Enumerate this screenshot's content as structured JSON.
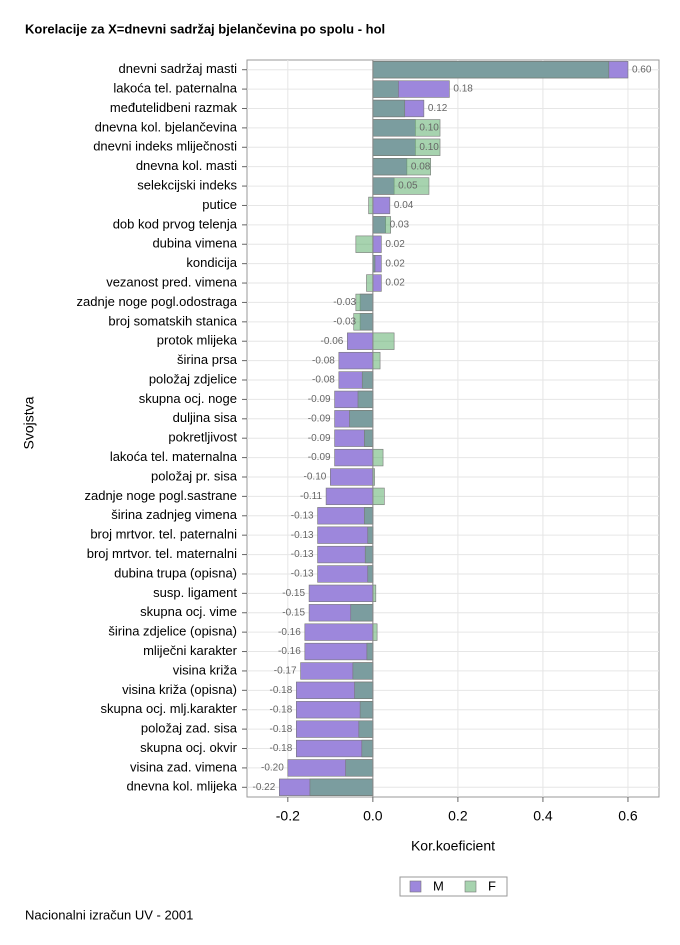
{
  "chart_data": {
    "type": "barh-overlap",
    "title": "Korelacije za X=dnevni sadržaj bjelančevina po spolu - hol",
    "xlabel": "Kor.koeficient",
    "ylabel": "Svojstva",
    "footer": "Nacionalni izračun UV - 2001",
    "categories": [
      "dnevni sadržaj masti",
      "lakoća tel. paternalna",
      "međutelidbeni razmak",
      "dnevna kol. bjelančevina",
      "dnevni indeks mliječnosti",
      "dnevna kol. masti",
      "selekcijski indeks",
      "putice",
      "dob kod prvog telenja",
      "dubina vimena",
      "kondicija",
      "vezanost pred. vimena",
      "zadnje noge pogl.odostraga",
      "broj somatskih stanica",
      "protok mlijeka",
      "širina prsa",
      "položaj zdjelice",
      "skupna ocj. noge",
      "duljina sisa",
      "pokretljivost",
      "lakoća tel. maternalna",
      "položaj pr. sisa",
      "zadnje noge pogl.sastrane",
      "širina zadnjeg vimena",
      "broj mrtvor. tel. paternalni",
      "broj mrtvor. tel. maternalni",
      "dubina trupa (opisna)",
      "susp. ligament",
      "skupna ocj. vime",
      "širina zdjelice (opisna)",
      "mliječni karakter",
      "visina križa",
      "visina križa (opisna)",
      "skupna ocj. mlj.karakter",
      "položaj zad. sisa",
      "skupna ocj. okvir",
      "visina zad. vimena",
      "dnevna kol. mlijeka"
    ],
    "series": [
      {
        "name": "M",
        "color": "#9d87dc",
        "values": [
          0.6,
          0.18,
          0.12,
          0.1,
          0.1,
          0.08,
          0.05,
          0.04,
          0.03,
          0.02,
          0.02,
          0.02,
          -0.03,
          -0.03,
          -0.06,
          -0.08,
          -0.08,
          -0.09,
          -0.09,
          -0.09,
          -0.09,
          -0.1,
          -0.11,
          -0.13,
          -0.13,
          -0.13,
          -0.13,
          -0.15,
          -0.15,
          -0.16,
          -0.16,
          -0.17,
          -0.18,
          -0.18,
          -0.18,
          -0.18,
          -0.2,
          -0.22
        ],
        "value_labels": [
          "0.60",
          "0.18",
          "0.12",
          "0.10",
          "0.10",
          "0.08",
          "0.05",
          "0.04",
          "0.03",
          "0.02",
          "0.02",
          "0.02",
          "-0.03",
          "-0.03",
          "-0.06",
          "-0.08",
          "-0.08",
          "-0.09",
          "-0.09",
          "-0.09",
          "-0.09",
          "-0.10",
          "-0.11",
          "-0.13",
          "-0.13",
          "-0.13",
          "-0.13",
          "-0.15",
          "-0.15",
          "-0.16",
          "-0.16",
          "-0.17",
          "-0.18",
          "-0.18",
          "-0.18",
          "-0.18",
          "-0.20",
          "-0.22"
        ]
      },
      {
        "name": "F",
        "color": "#5fae6e",
        "values": [
          0.555,
          0.06,
          0.075,
          0.158,
          0.158,
          0.136,
          0.132,
          -0.01,
          0.042,
          -0.04,
          0.005,
          -0.015,
          -0.04,
          -0.045,
          0.05,
          0.017,
          -0.025,
          -0.035,
          -0.055,
          -0.02,
          0.024,
          0.004,
          0.027,
          -0.02,
          -0.012,
          -0.018,
          -0.012,
          0.007,
          -0.052,
          0.01,
          -0.014,
          -0.047,
          -0.043,
          -0.03,
          -0.033,
          -0.026,
          -0.064,
          -0.148
        ]
      }
    ],
    "xlim": [
      -0.296,
      0.673
    ],
    "xticks": [
      -0.2,
      {
        "value": 0,
        "label": "0.0"
      },
      0.2,
      0.4,
      0.6
    ],
    "grid": true,
    "legend": "bottom"
  }
}
